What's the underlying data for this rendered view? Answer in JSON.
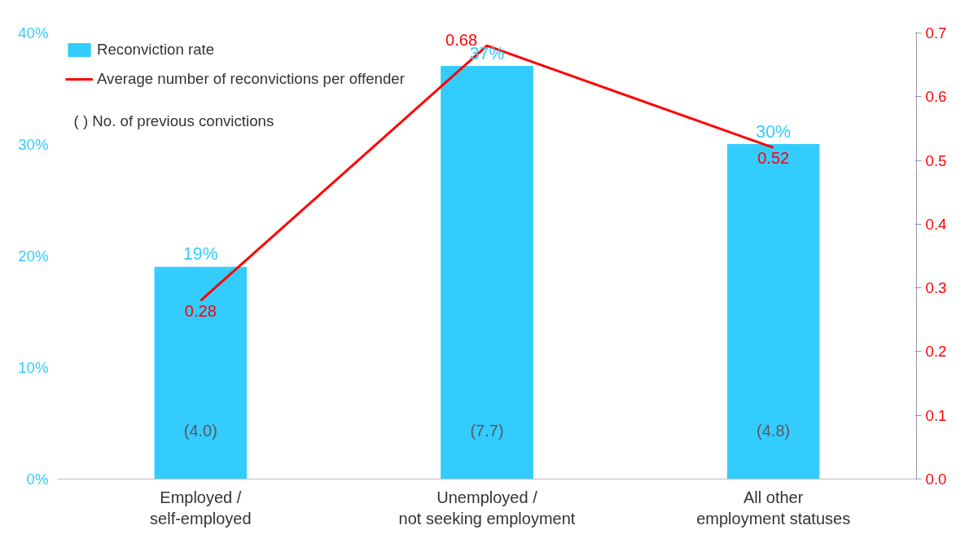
{
  "chart_data": {
    "type": "bar",
    "categories": [
      "Employed /\nself-employed",
      "Unemployed /\nnot seeking employment",
      "All other\nemployment statuses"
    ],
    "series": [
      {
        "name": "Reconviction rate",
        "color": "#33ccff",
        "values": [
          19,
          37,
          30
        ],
        "value_labels": [
          "19%",
          "37%",
          "30%"
        ]
      },
      {
        "name": "Average number of reconvictions per offender",
        "type": "line",
        "axis": "y2",
        "color": "#ff0000",
        "values": [
          0.28,
          0.68,
          0.52
        ],
        "value_labels": [
          "0.28",
          "0.68",
          "0.52"
        ]
      }
    ],
    "ylim": [
      0,
      40
    ],
    "yticks": [
      {
        "value": 0,
        "label": "0%"
      },
      {
        "value": 10,
        "label": "10%"
      },
      {
        "value": 20,
        "label": "20%"
      },
      {
        "value": 30,
        "label": "30%"
      },
      {
        "value": 40,
        "label": "40%"
      }
    ],
    "y2lim": [
      0,
      0.7
    ],
    "y2ticks": [
      {
        "value": 0,
        "label": "0.0"
      },
      0.1,
      0.2,
      0.3,
      0.4,
      0.5,
      0.6,
      0.7
    ],
    "annotations": [
      "( )   No. of previous convictions",
      "(4.0)",
      "(7.7)",
      "(4.8)"
    ],
    "legend": "top left",
    "grid": false,
    "marker": "none",
    "line_style": "solid"
  }
}
